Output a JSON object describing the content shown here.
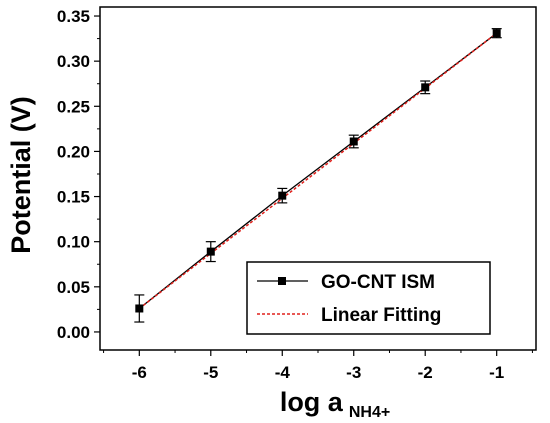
{
  "chart_data": {
    "type": "scatter",
    "x": [
      -6,
      -5,
      -4,
      -3,
      -2,
      -1
    ],
    "series": [
      {
        "name": "GO-CNT ISM",
        "values": [
          0.026,
          0.089,
          0.151,
          0.211,
          0.271,
          0.331
        ],
        "errors": [
          0.015,
          0.011,
          0.008,
          0.007,
          0.007,
          0.005
        ],
        "color": "#000000",
        "marker": "square",
        "line": "solid"
      },
      {
        "name": "Linear Fitting",
        "fit": {
          "slope": 0.061,
          "intercept": 0.392
        },
        "color": "#e0201b",
        "line": "dashed"
      }
    ],
    "xlabel": "log a",
    "xlabel_subscript": "NH4+",
    "ylabel": "Potential (V)",
    "xlim": [
      -6.55,
      -0.45
    ],
    "ylim": [
      -0.02,
      0.36
    ],
    "xticks": [
      -6,
      -5,
      -4,
      -3,
      -2,
      -1
    ],
    "xtick_labels": [
      "-6",
      "-5",
      "-4",
      "-3",
      "-2",
      "-1"
    ],
    "yticks": [
      0.0,
      0.05,
      0.1,
      0.15,
      0.2,
      0.25,
      0.3,
      0.35
    ],
    "ytick_labels": [
      "0.00",
      "0.05",
      "0.10",
      "0.15",
      "0.20",
      "0.25",
      "0.30",
      "0.35"
    ],
    "grid": false,
    "legend_position": "bottom-right"
  }
}
